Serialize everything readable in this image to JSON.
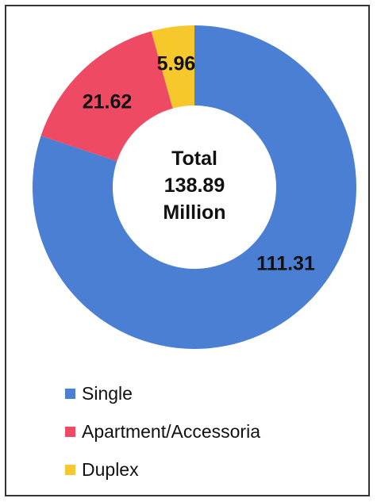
{
  "chart_data": {
    "type": "pie",
    "variant": "donut",
    "categories": [
      "Single",
      "Apartment/Accessoria",
      "Duplex"
    ],
    "values": [
      111.31,
      21.62,
      5.96
    ],
    "data_labels": [
      "111.31",
      "21.62",
      "5.96"
    ],
    "colors": [
      "#4a7fd4",
      "#ef4a63",
      "#f7c82c"
    ],
    "center_text": [
      "Total",
      "138.89",
      "Million"
    ],
    "legend": {
      "placement": "bottom-left",
      "entries": [
        "Single",
        "Apartment/Accessoria",
        "Duplex"
      ]
    }
  }
}
